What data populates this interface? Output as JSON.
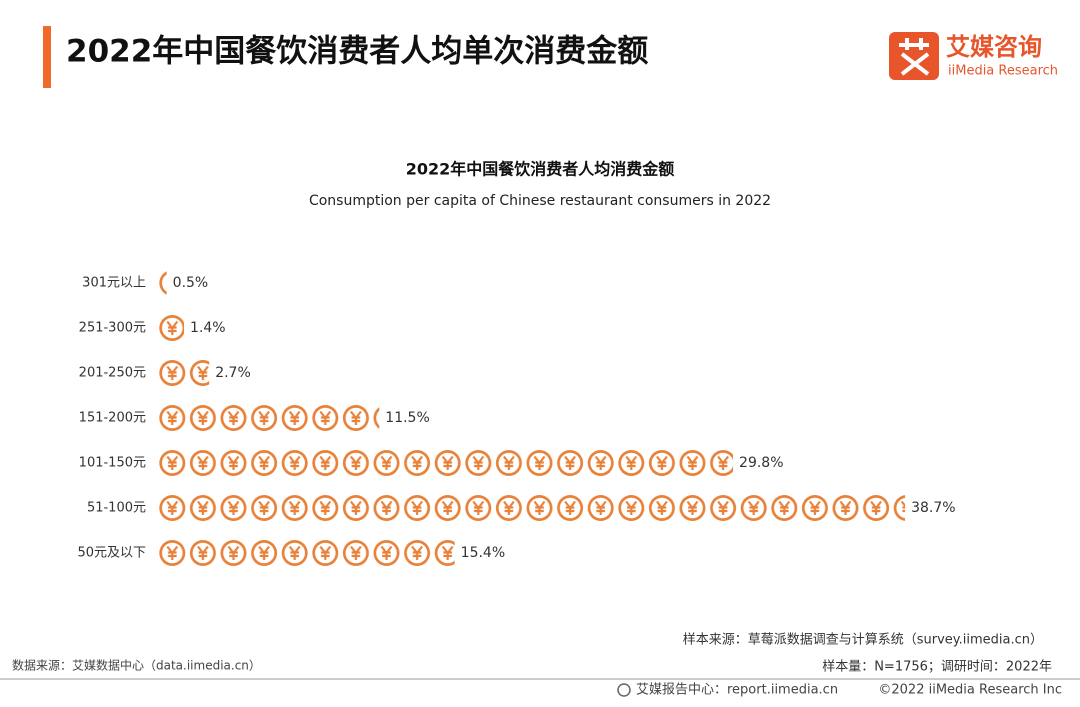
{
  "header": {
    "title": "2022年中国餐饮消费者人均单次消费金额",
    "logo_cn": "艾媒咨询",
    "logo_en": "iiMedia Research"
  },
  "chart_data": {
    "type": "bar",
    "orientation": "horizontal",
    "title": "2022年中国餐饮消费者人均消费金额",
    "subtitle": "Consumption per capita of Chinese restaurant consumers in 2022",
    "categories": [
      "301元以上",
      "251-300元",
      "201-250元",
      "151-200元",
      "101-150元",
      "51-100元",
      "50元及以下"
    ],
    "values": [
      0.5,
      1.4,
      2.7,
      11.5,
      29.8,
      38.7,
      15.4
    ],
    "value_labels": [
      "0.5%",
      "1.4%",
      "2.7%",
      "11.5%",
      "29.8%",
      "38.7%",
      "15.4%"
    ],
    "color": "#e8823a"
  },
  "footer": {
    "sample_source": "样本来源：草莓派数据调查与计算系统（survey.iimedia.cn）",
    "data_source": "数据来源：艾媒数据中心（data.iimedia.cn）",
    "sample_size": "样本量：N=1756；调研时间：2022年",
    "report_center": "艾媒报告中心：report.iimedia.cn",
    "copyright": "©2022  iiMedia Research  Inc"
  }
}
